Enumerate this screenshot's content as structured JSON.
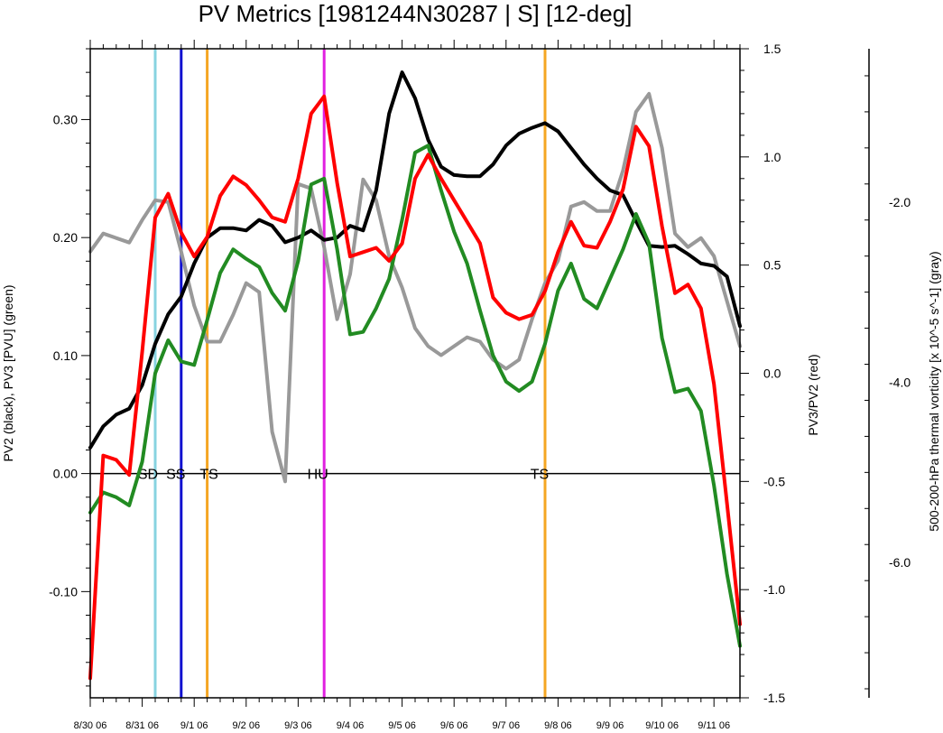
{
  "chart_data": {
    "type": "line",
    "title": "PV Metrics [1981244N30287 | S] [12-deg]",
    "ylabel_left": "PV2 (black), PV3 [PVU] (green)",
    "ylabel_right": "PV3/PV2 (red)",
    "ylabel_far_right": "500-200-hPa thermal vorticity [x 10^-5 s^-1] (gray)",
    "x_tick_labels": [
      "8/30 06",
      "8/31 06",
      "9/1 06",
      "9/2 06",
      "9/3 06",
      "9/4 06",
      "9/5 06",
      "9/6 06",
      "9/7 06",
      "9/8 06",
      "9/9 06",
      "9/10 06",
      "9/11 06"
    ],
    "x_range_days": [
      0,
      12.5
    ],
    "left_axis": {
      "ylim": [
        -0.19,
        0.36
      ],
      "ticks": [
        -0.1,
        0.0,
        0.1,
        0.2,
        0.3
      ],
      "tick_labels": [
        "-0.10",
        "0.00",
        "0.10",
        "0.20",
        "0.30"
      ]
    },
    "right_axis": {
      "ylim": [
        -1.5,
        1.5
      ],
      "ticks": [
        -1.5,
        -1.0,
        -0.5,
        0.0,
        0.5,
        1.0,
        1.5
      ],
      "tick_labels": [
        "-1.5",
        "-1.0",
        "-0.5",
        "0.0",
        "0.5",
        "1.0",
        "1.5"
      ]
    },
    "far_right_axis": {
      "ylim": [
        -7.5,
        -0.3
      ],
      "ticks": [
        -6.0,
        -4.0,
        -2.0
      ],
      "tick_labels": [
        "-6.0",
        "-4.0",
        "-2.0"
      ]
    },
    "zero_line": 0.0,
    "events": [
      {
        "day": 1.25,
        "color": "#87d3e0",
        "label": "SD"
      },
      {
        "day": 1.75,
        "color": "#1010d0",
        "label": "SS"
      },
      {
        "day": 2.25,
        "color": "#f5a623",
        "label": "TS"
      },
      {
        "day": 4.5,
        "color": "#e020e0",
        "label": "HU"
      },
      {
        "day": 8.75,
        "color": "#f5a623",
        "label": "TS"
      }
    ],
    "series": [
      {
        "name": "PV2",
        "color": "#000000",
        "axis": "left",
        "x": [
          0,
          0.25,
          0.5,
          0.75,
          1,
          1.25,
          1.5,
          1.75,
          2,
          2.25,
          2.5,
          2.75,
          3,
          3.25,
          3.5,
          3.75,
          4,
          4.25,
          4.5,
          4.75,
          5,
          5.25,
          5.5,
          5.75,
          6,
          6.25,
          6.5,
          6.75,
          7,
          7.25,
          7.5,
          7.75,
          8,
          8.25,
          8.5,
          8.75,
          9,
          9.25,
          9.5,
          9.75,
          10,
          10.25,
          10.5,
          10.75,
          11,
          11.25,
          11.5,
          11.75,
          12,
          12.25,
          12.5
        ],
        "values": [
          0.022,
          0.04,
          0.05,
          0.055,
          0.075,
          0.11,
          0.135,
          0.15,
          0.178,
          0.2,
          0.208,
          0.208,
          0.206,
          0.215,
          0.21,
          0.196,
          0.2,
          0.206,
          0.198,
          0.2,
          0.21,
          0.206,
          0.24,
          0.305,
          0.34,
          0.318,
          0.283,
          0.26,
          0.253,
          0.252,
          0.252,
          0.262,
          0.278,
          0.288,
          0.293,
          0.297,
          0.29,
          0.276,
          0.262,
          0.25,
          0.24,
          0.236,
          0.214,
          0.193,
          0.192,
          0.193,
          0.186,
          0.178,
          0.176,
          0.167,
          0.125
        ]
      },
      {
        "name": "PV3",
        "color": "#228b22",
        "axis": "left",
        "x": [
          0,
          0.25,
          0.5,
          0.75,
          1,
          1.25,
          1.5,
          1.75,
          2,
          2.25,
          2.5,
          2.75,
          3,
          3.25,
          3.5,
          3.75,
          4,
          4.25,
          4.5,
          4.75,
          5,
          5.25,
          5.5,
          5.75,
          6,
          6.25,
          6.5,
          6.75,
          7,
          7.25,
          7.5,
          7.75,
          8,
          8.25,
          8.5,
          8.75,
          9,
          9.25,
          9.5,
          9.75,
          10,
          10.25,
          10.5,
          10.75,
          11,
          11.25,
          11.5,
          11.75,
          12,
          12.25,
          12.5
        ],
        "values": [
          -0.033,
          -0.016,
          -0.02,
          -0.027,
          0.01,
          0.085,
          0.113,
          0.095,
          0.092,
          0.13,
          0.17,
          0.19,
          0.182,
          0.175,
          0.153,
          0.138,
          0.18,
          0.245,
          0.25,
          0.19,
          0.118,
          0.12,
          0.14,
          0.165,
          0.215,
          0.272,
          0.278,
          0.24,
          0.205,
          0.178,
          0.138,
          0.1,
          0.078,
          0.07,
          0.078,
          0.11,
          0.155,
          0.178,
          0.148,
          0.14,
          0.165,
          0.19,
          0.22,
          0.195,
          0.115,
          0.069,
          0.072,
          0.053,
          -0.01,
          -0.085,
          -0.146
        ]
      },
      {
        "name": "PV3/PV2",
        "color": "#ff0000",
        "axis": "right",
        "x": [
          0,
          0.25,
          0.5,
          0.75,
          1,
          1.25,
          1.5,
          1.75,
          2,
          2.25,
          2.5,
          2.75,
          3,
          3.25,
          3.5,
          3.75,
          4,
          4.25,
          4.5,
          4.75,
          5,
          5.25,
          5.5,
          5.75,
          6,
          6.25,
          6.5,
          6.75,
          7,
          7.25,
          7.5,
          7.75,
          8,
          8.25,
          8.5,
          8.75,
          9,
          9.25,
          9.5,
          9.75,
          10,
          10.25,
          10.5,
          10.75,
          11,
          11.25,
          11.5,
          11.75,
          12,
          12.25,
          12.5
        ],
        "values": [
          -1.41,
          -0.38,
          -0.4,
          -0.47,
          0.1,
          0.72,
          0.83,
          0.65,
          0.54,
          0.63,
          0.82,
          0.91,
          0.87,
          0.8,
          0.72,
          0.7,
          0.9,
          1.2,
          1.28,
          0.88,
          0.54,
          0.56,
          0.58,
          0.52,
          0.6,
          0.9,
          1.01,
          0.9,
          0.8,
          0.7,
          0.6,
          0.35,
          0.28,
          0.25,
          0.27,
          0.38,
          0.56,
          0.7,
          0.59,
          0.58,
          0.7,
          0.85,
          1.14,
          1.05,
          0.68,
          0.37,
          0.41,
          0.3,
          -0.05,
          -0.6,
          -1.16
        ]
      },
      {
        "name": "thermal vorticity",
        "color": "#999999",
        "axis": "far_right",
        "x": [
          0,
          0.25,
          0.5,
          0.75,
          1,
          1.25,
          1.5,
          1.75,
          2,
          2.25,
          2.5,
          2.75,
          3,
          3.25,
          3.5,
          3.75,
          4,
          4.25,
          4.5,
          4.75,
          5,
          5.25,
          5.5,
          5.75,
          6,
          6.25,
          6.5,
          6.75,
          7,
          7.25,
          7.5,
          7.75,
          8,
          8.25,
          8.5,
          8.75,
          9,
          9.25,
          9.5,
          9.75,
          10,
          10.25,
          10.5,
          10.75,
          11,
          11.25,
          11.5,
          11.75,
          12,
          12.25,
          12.5
        ],
        "values": [
          -2.55,
          -2.35,
          -2.4,
          -2.45,
          -2.2,
          -1.98,
          -2.0,
          -2.55,
          -3.15,
          -3.55,
          -3.55,
          -3.25,
          -2.9,
          -3.0,
          -4.55,
          -5.1,
          -1.8,
          -1.85,
          -2.5,
          -3.3,
          -2.8,
          -1.75,
          -1.98,
          -2.6,
          -2.95,
          -3.4,
          -3.6,
          -3.7,
          -3.6,
          -3.5,
          -3.55,
          -3.75,
          -3.85,
          -3.75,
          -3.3,
          -2.9,
          -2.65,
          -2.05,
          -2.0,
          -2.1,
          -2.1,
          -1.65,
          -1.0,
          -0.8,
          -1.4,
          -2.35,
          -2.5,
          -2.4,
          -2.6,
          -3.1,
          -3.6
        ]
      }
    ]
  }
}
